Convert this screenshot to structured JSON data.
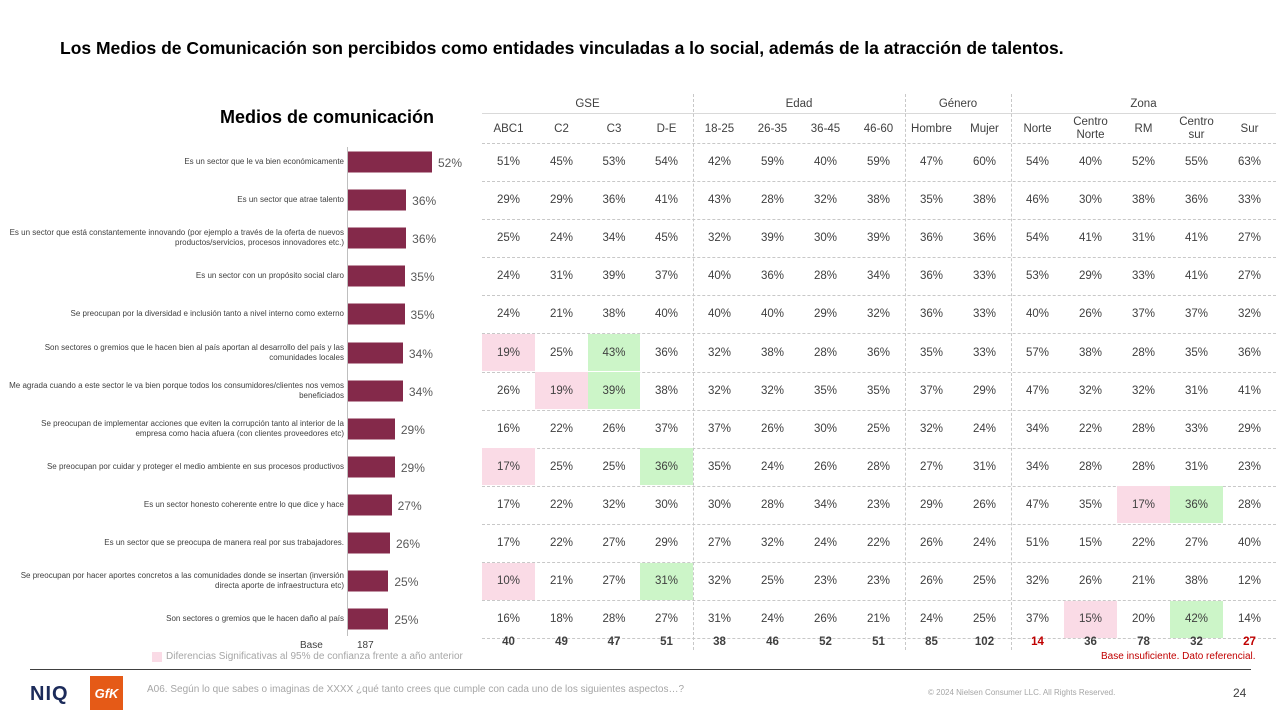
{
  "title": "Los Medios de Comunicación son percibidos como entidades vinculadas a lo social, además de la atracción de talentos.",
  "chart_data": {
    "type": "bar",
    "title": "Medios de comunicación",
    "categories": [
      "Es un sector que le va bien económicamente",
      "Es un sector que atrae talento",
      "Es un sector que está constantemente innovando (por ejemplo a través de la oferta de nuevos productos/servicios, procesos innovadores etc.)",
      "Es un sector con un propósito social claro",
      "Se preocupan por la diversidad e inclusión tanto a nivel interno como externo",
      "Son sectores o gremios que le hacen bien al país aportan al desarrollo del país y las comunidades locales",
      "Me agrada cuando a este sector le va bien porque todos los consumidores/clientes nos vemos beneficiados",
      "Se preocupan de implementar acciones que eviten la corrupción tanto al interior de la empresa como hacia afuera (con clientes proveedores etc)",
      "Se preocupan por cuidar y proteger el medio ambiente en sus procesos productivos",
      "Es un sector honesto coherente entre lo que dice y hace",
      "Es un sector que se preocupa de manera real por sus trabajadores.",
      "Se preocupan por hacer aportes concretos a las comunidades donde se insertan (inversión directa aporte de infraestructura etc)",
      "Son sectores o gremios que le hacen daño al país"
    ],
    "values": [
      52,
      36,
      36,
      35,
      35,
      34,
      34,
      29,
      29,
      27,
      26,
      25,
      25
    ],
    "value_labels": [
      "52%",
      "36%",
      "36%",
      "35%",
      "35%",
      "34%",
      "34%",
      "29%",
      "29%",
      "27%",
      "26%",
      "25%",
      "25%"
    ],
    "bar_color": "#84294a",
    "xlim": [
      0,
      52
    ]
  },
  "base": {
    "label": "Base",
    "value": "187"
  },
  "groups": [
    {
      "name": "GSE",
      "span": [
        0,
        4
      ]
    },
    {
      "name": "Edad",
      "span": [
        4,
        8
      ]
    },
    {
      "name": "Género",
      "span": [
        8,
        10
      ]
    },
    {
      "name": "Zona",
      "span": [
        10,
        15
      ]
    }
  ],
  "columns": [
    "ABC1",
    "C2",
    "C3",
    "D-E",
    "18-25",
    "26-35",
    "36-45",
    "46-60",
    "Hombre",
    "Mujer",
    "Norte",
    "Centro Norte",
    "RM",
    "Centro sur",
    "Sur"
  ],
  "table": [
    [
      "51%",
      "45%",
      "53%",
      "54%",
      "42%",
      "59%",
      "40%",
      "59%",
      "47%",
      "60%",
      "54%",
      "40%",
      "52%",
      "55%",
      "63%"
    ],
    [
      "29%",
      "29%",
      "36%",
      "41%",
      "43%",
      "28%",
      "32%",
      "38%",
      "35%",
      "38%",
      "46%",
      "30%",
      "38%",
      "36%",
      "33%"
    ],
    [
      "25%",
      "24%",
      "34%",
      "45%",
      "32%",
      "39%",
      "30%",
      "39%",
      "36%",
      "36%",
      "54%",
      "41%",
      "31%",
      "41%",
      "27%"
    ],
    [
      "24%",
      "31%",
      "39%",
      "37%",
      "40%",
      "36%",
      "28%",
      "34%",
      "36%",
      "33%",
      "53%",
      "29%",
      "33%",
      "41%",
      "27%"
    ],
    [
      "24%",
      "21%",
      "38%",
      "40%",
      "40%",
      "40%",
      "29%",
      "32%",
      "36%",
      "33%",
      "40%",
      "26%",
      "37%",
      "37%",
      "32%"
    ],
    [
      "19%",
      "25%",
      "43%",
      "36%",
      "32%",
      "38%",
      "28%",
      "36%",
      "35%",
      "33%",
      "57%",
      "38%",
      "28%",
      "35%",
      "36%"
    ],
    [
      "26%",
      "19%",
      "39%",
      "38%",
      "32%",
      "32%",
      "35%",
      "35%",
      "37%",
      "29%",
      "47%",
      "32%",
      "32%",
      "31%",
      "41%"
    ],
    [
      "16%",
      "22%",
      "26%",
      "37%",
      "37%",
      "26%",
      "30%",
      "25%",
      "32%",
      "24%",
      "34%",
      "22%",
      "28%",
      "33%",
      "29%"
    ],
    [
      "17%",
      "25%",
      "25%",
      "36%",
      "35%",
      "24%",
      "26%",
      "28%",
      "27%",
      "31%",
      "34%",
      "28%",
      "28%",
      "31%",
      "23%"
    ],
    [
      "17%",
      "22%",
      "32%",
      "30%",
      "30%",
      "28%",
      "34%",
      "23%",
      "29%",
      "26%",
      "47%",
      "35%",
      "17%",
      "36%",
      "28%"
    ],
    [
      "17%",
      "22%",
      "27%",
      "29%",
      "27%",
      "32%",
      "24%",
      "22%",
      "26%",
      "24%",
      "51%",
      "15%",
      "22%",
      "27%",
      "40%"
    ],
    [
      "10%",
      "21%",
      "27%",
      "31%",
      "32%",
      "25%",
      "23%",
      "23%",
      "26%",
      "25%",
      "32%",
      "26%",
      "21%",
      "38%",
      "12%"
    ],
    [
      "16%",
      "18%",
      "28%",
      "27%",
      "31%",
      "24%",
      "26%",
      "21%",
      "24%",
      "25%",
      "37%",
      "15%",
      "20%",
      "42%",
      "14%"
    ]
  ],
  "highlights": [
    {
      "row": 5,
      "col": 0,
      "type": "pink"
    },
    {
      "row": 5,
      "col": 2,
      "type": "green"
    },
    {
      "row": 6,
      "col": 1,
      "type": "pink"
    },
    {
      "row": 6,
      "col": 2,
      "type": "green"
    },
    {
      "row": 8,
      "col": 0,
      "type": "pink"
    },
    {
      "row": 8,
      "col": 3,
      "type": "green"
    },
    {
      "row": 9,
      "col": 12,
      "type": "pink"
    },
    {
      "row": 9,
      "col": 13,
      "type": "green"
    },
    {
      "row": 11,
      "col": 0,
      "type": "pink"
    },
    {
      "row": 11,
      "col": 3,
      "type": "green"
    },
    {
      "row": 12,
      "col": 11,
      "type": "pink"
    },
    {
      "row": 12,
      "col": 13,
      "type": "green"
    }
  ],
  "colors": {
    "pink": "#fadbe6",
    "green": "#ccf5c8",
    "red": "#c00000"
  },
  "bases": [
    "40",
    "49",
    "47",
    "51",
    "38",
    "46",
    "52",
    "51",
    "85",
    "102",
    "14",
    "36",
    "78",
    "32",
    "27"
  ],
  "bases_insufficient": [
    10,
    14
  ],
  "legend_text": "Diferencias Significativas al 95% de confianza frente a año anterior",
  "insufficient_note": "Base insuficiente. Dato referencial.",
  "footer": {
    "brand_niq": "NIQ",
    "brand_gfk": "GfK",
    "question": "A06. Según lo que sabes o imaginas de XXXX ¿qué tanto crees que cumple con cada uno de los siguientes aspectos…?",
    "copyright": "© 2024 Nielsen Consumer LLC. All Rights Reserved.",
    "page": "24"
  }
}
